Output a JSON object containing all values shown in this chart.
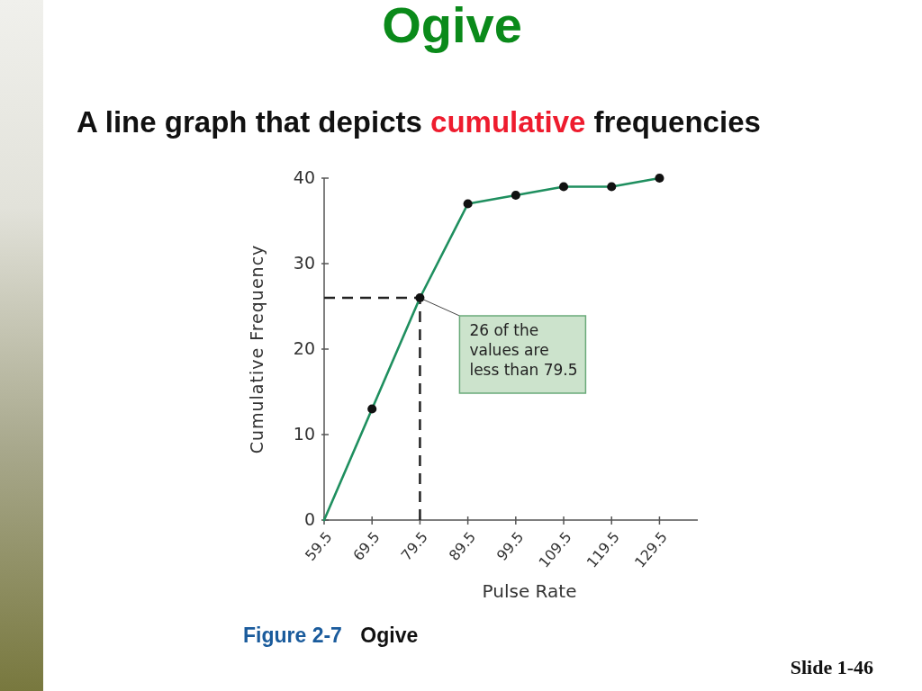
{
  "chart_data": {
    "type": "line",
    "title": "Ogive",
    "subtitle": "A line graph that depicts cumulative frequencies",
    "xlabel": "Pulse Rate",
    "ylabel": "Cumulative Frequency",
    "x": [
      59.5,
      69.5,
      79.5,
      89.5,
      99.5,
      109.5,
      119.5,
      129.5
    ],
    "series": [
      {
        "color": "#1f8f5f",
        "values": [
          0,
          13,
          26,
          37,
          38,
          39,
          39,
          40
        ]
      },
      {
        "type": "scatter",
        "color": "#111111",
        "marker": "circle",
        "x": [
          69.5,
          79.5,
          89.5,
          99.5,
          109.5,
          119.5,
          129.5
        ],
        "values": [
          13,
          26,
          37,
          38,
          39,
          39,
          40
        ]
      }
    ],
    "xlim": [
      59.5,
      137.5
    ],
    "xticks": [
      59.5,
      69.5,
      79.5,
      89.5,
      99.5,
      109.5,
      119.5,
      129.5
    ],
    "ylim": [
      0,
      40
    ],
    "yticks": [
      0,
      10,
      20,
      30,
      40
    ],
    "ref_lines": [
      {
        "axis": "y",
        "value": 26,
        "color": "#222222",
        "line_style": "dashed"
      },
      {
        "axis": "x",
        "value": 79.5,
        "color": "#222222",
        "line_style": "dashed"
      }
    ],
    "annotations": [
      {
        "text": "26 of the values are less than 79.5",
        "x": 79.5,
        "y": 26
      },
      "Figure 2-7 Ogive",
      "Slide 1-46"
    ]
  }
}
